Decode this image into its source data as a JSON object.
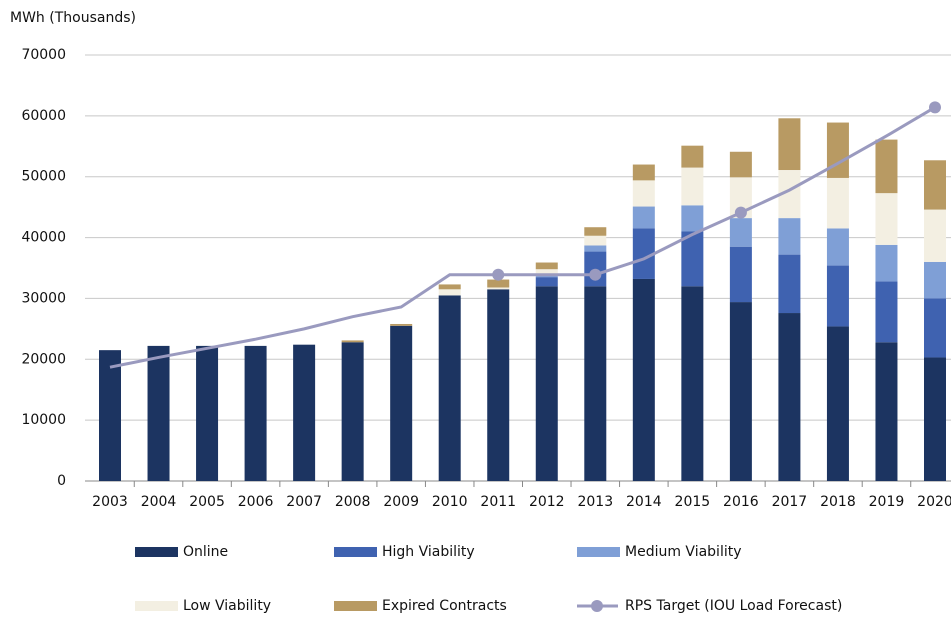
{
  "chart_data": {
    "type": "bar",
    "stacked": true,
    "y_label": "MWh (Thousands)",
    "categories": [
      "2003",
      "2004",
      "2005",
      "2006",
      "2007",
      "2008",
      "2009",
      "2010",
      "2011",
      "2012",
      "2013",
      "2014",
      "2015",
      "2016",
      "2017",
      "2018",
      "2019",
      "2020"
    ],
    "series": [
      {
        "name": "Online",
        "color": "#1c3461",
        "values": [
          21500,
          22200,
          22200,
          22200,
          22400,
          22800,
          25500,
          30500,
          31500,
          32000,
          32000,
          33200,
          32000,
          29400,
          27600,
          25400,
          22800,
          20300
        ]
      },
      {
        "name": "High Viability",
        "color": "#3f62b0",
        "values": [
          0,
          0,
          0,
          0,
          0,
          0,
          0,
          0,
          0,
          1500,
          5700,
          8300,
          9000,
          9100,
          9600,
          10000,
          10000,
          9700
        ]
      },
      {
        "name": "Medium Viability",
        "color": "#7f9fd6",
        "values": [
          0,
          0,
          0,
          0,
          0,
          0,
          0,
          0,
          0,
          500,
          1000,
          3600,
          4300,
          4700,
          6000,
          6100,
          6000,
          6000
        ]
      },
      {
        "name": "Low Viability",
        "color": "#f3efe2",
        "values": [
          0,
          0,
          0,
          0,
          0,
          0,
          0,
          1000,
          300,
          800,
          1600,
          4300,
          6200,
          6700,
          7900,
          8300,
          8500,
          8600
        ]
      },
      {
        "name": "Expired Contracts",
        "color": "#b89a63",
        "values": [
          0,
          0,
          0,
          0,
          0,
          300,
          300,
          800,
          1300,
          1100,
          1400,
          2600,
          3600,
          4200,
          8500,
          9100,
          8800,
          8100
        ]
      },
      {
        "name": "RPS Target (IOU Load Forecast)",
        "type": "line",
        "color": "#9a9abf",
        "marker_points": [
          "2011",
          "2013",
          "2016",
          "2020"
        ],
        "values": [
          18700,
          20300,
          21800,
          23300,
          25000,
          27000,
          28600,
          33900,
          33900,
          33900,
          33900,
          36500,
          40500,
          44100,
          47800,
          52200,
          56700,
          61400
        ]
      }
    ],
    "ylim": [
      0,
      70000
    ],
    "yticks": [
      0,
      10000,
      20000,
      30000,
      40000,
      50000,
      60000,
      70000
    ],
    "grid": true
  }
}
